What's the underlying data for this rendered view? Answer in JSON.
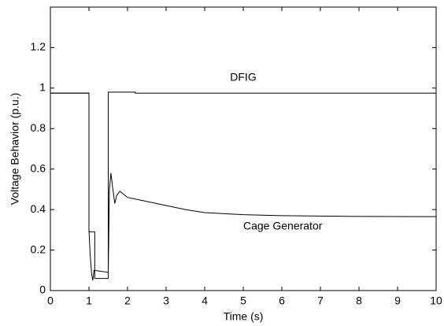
{
  "chart_data": {
    "type": "line",
    "x_label": "Time (s)",
    "y_label": "Voltage Behavior (p.u.)",
    "xlim": [
      0,
      10
    ],
    "xticks": [
      0,
      1,
      2,
      3,
      4,
      5,
      6,
      7,
      8,
      9,
      10
    ],
    "ylim": [
      0,
      1.4
    ],
    "yticks": [
      0,
      0.2,
      0.4,
      0.6,
      0.8,
      1,
      1.2
    ],
    "grid": false,
    "series": [
      {
        "name": "DFIG",
        "color": "#000000",
        "x": [
          0,
          1.0,
          1.0,
          1.15,
          1.15,
          1.5,
          1.5,
          2.2,
          2.2,
          10
        ],
        "values": [
          0.975,
          0.975,
          0.29,
          0.29,
          0.06,
          0.06,
          0.98,
          0.98,
          0.975,
          0.975
        ]
      },
      {
        "name": "Cage Generator",
        "color": "#000000",
        "x": [
          0,
          1.0,
          1.0,
          1.03,
          1.07,
          1.1,
          1.13,
          1.5,
          1.53,
          1.57,
          1.62,
          1.67,
          1.72,
          1.8,
          2.0,
          2.5,
          3,
          3.5,
          4,
          5,
          6,
          8,
          10
        ],
        "values": [
          0.975,
          0.975,
          0.3,
          0.18,
          0.08,
          0.05,
          0.1,
          0.09,
          0.5,
          0.58,
          0.5,
          0.43,
          0.47,
          0.49,
          0.46,
          0.44,
          0.42,
          0.4,
          0.385,
          0.375,
          0.37,
          0.366,
          0.365
        ]
      }
    ]
  }
}
